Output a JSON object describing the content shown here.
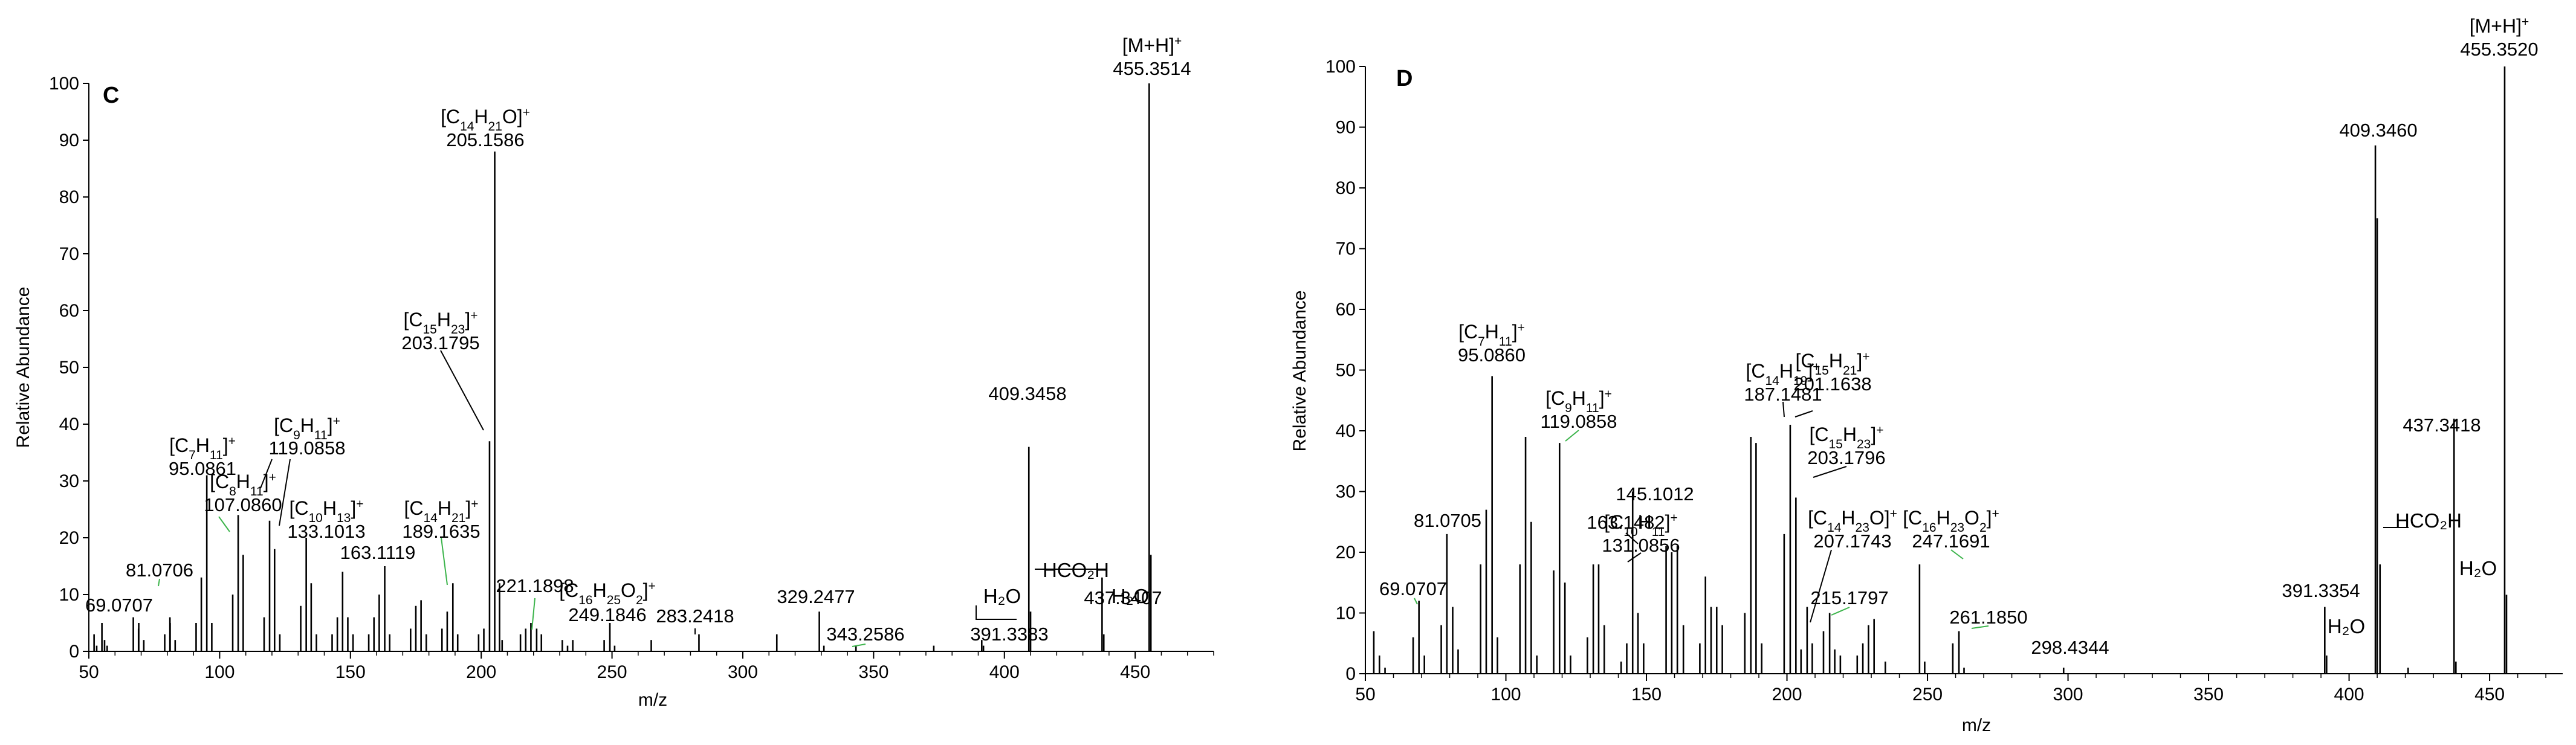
{
  "chart_data": [
    {
      "panel": "C",
      "type": "bar",
      "xlabel": "m/z",
      "ylabel": "Relative Abundance",
      "xlim": [
        50,
        480
      ],
      "ylim": [
        0,
        100
      ],
      "xticks": [
        50,
        100,
        150,
        200,
        250,
        300,
        350,
        400,
        450
      ],
      "yticks": [
        0,
        10,
        20,
        30,
        40,
        50,
        60,
        70,
        80,
        90,
        100
      ],
      "peaks": [
        [
          52,
          3
        ],
        [
          53,
          1
        ],
        [
          55,
          5
        ],
        [
          56,
          2
        ],
        [
          57,
          1
        ],
        [
          67,
          6
        ],
        [
          69,
          4
        ],
        [
          69.07,
          5
        ],
        [
          71,
          2
        ],
        [
          79,
          3
        ],
        [
          81,
          6
        ],
        [
          81.07,
          5
        ],
        [
          83,
          2
        ],
        [
          91,
          5
        ],
        [
          93,
          13
        ],
        [
          95.09,
          31
        ],
        [
          97,
          5
        ],
        [
          105,
          10
        ],
        [
          107.09,
          24
        ],
        [
          109,
          17
        ],
        [
          117,
          6
        ],
        [
          119.09,
          23
        ],
        [
          121,
          18
        ],
        [
          123,
          3
        ],
        [
          131,
          8
        ],
        [
          133.1,
          20
        ],
        [
          135,
          12
        ],
        [
          137,
          3
        ],
        [
          143,
          3
        ],
        [
          145,
          6
        ],
        [
          147,
          14
        ],
        [
          149,
          6
        ],
        [
          151,
          3
        ],
        [
          157,
          3
        ],
        [
          159,
          6
        ],
        [
          161,
          10
        ],
        [
          163.11,
          15
        ],
        [
          165,
          3
        ],
        [
          173,
          4
        ],
        [
          175,
          8
        ],
        [
          177,
          9
        ],
        [
          179,
          3
        ],
        [
          185,
          4
        ],
        [
          187,
          7
        ],
        [
          189.16,
          12
        ],
        [
          191,
          3
        ],
        [
          199,
          3
        ],
        [
          201,
          4
        ],
        [
          203.18,
          37
        ],
        [
          205.16,
          88
        ],
        [
          207,
          12
        ],
        [
          208,
          2
        ],
        [
          215,
          3
        ],
        [
          217,
          4
        ],
        [
          219,
          5
        ],
        [
          221.19,
          4
        ],
        [
          223,
          3
        ],
        [
          231,
          2
        ],
        [
          233,
          1
        ],
        [
          235,
          2
        ],
        [
          247,
          2
        ],
        [
          249.18,
          5
        ],
        [
          251,
          1
        ],
        [
          265,
          2
        ],
        [
          283.24,
          3
        ],
        [
          313,
          3
        ],
        [
          329.25,
          7
        ],
        [
          331,
          1
        ],
        [
          343.26,
          1
        ],
        [
          373,
          1
        ],
        [
          391.34,
          2
        ],
        [
          392,
          1
        ],
        [
          409.35,
          36
        ],
        [
          410,
          7
        ],
        [
          437.34,
          13
        ],
        [
          438,
          3
        ],
        [
          455.35,
          100
        ],
        [
          456,
          17
        ]
      ],
      "labels": [
        {
          "text": "69.0707",
          "mz": 69.07
        },
        {
          "text": "81.0706",
          "mz": 81.07
        },
        {
          "ion": [
            "[C",
            "7",
            "H",
            "11",
            "]",
            "+"
          ],
          "mass": "95.0861",
          "mz": 95.09
        },
        {
          "ion": [
            "[C",
            "8",
            "H",
            "11",
            "]",
            "+"
          ],
          "mass": "107.0860",
          "mz": 107.09
        },
        {
          "ion": [
            "[C",
            "9",
            "H",
            "11",
            "]",
            "+"
          ],
          "mass": "119.0858",
          "mz": 119.09
        },
        {
          "ion": [
            "[C",
            "10",
            "H",
            "13",
            "]",
            "+"
          ],
          "mass": "133.1013",
          "mz": 133.1
        },
        {
          "text": "163.1119",
          "mz": 163.11
        },
        {
          "ion": [
            "[C",
            "14",
            "H",
            "21",
            "]",
            "+"
          ],
          "mass": "189.1635",
          "mz": 189.16
        },
        {
          "ion": [
            "[C",
            "15",
            "H",
            "23",
            "]",
            "+"
          ],
          "mass": "203.1795",
          "mz": 203.18
        },
        {
          "ion": [
            "[C",
            "14",
            "H",
            "21",
            "O]",
            "+"
          ],
          "mass": "205.1586",
          "mz": 205.16
        },
        {
          "text": "221.1898",
          "mz": 221.19
        },
        {
          "ion": [
            "[C",
            "16",
            "H",
            "25",
            "O",
            "2",
            "]",
            "+"
          ],
          "mass": "249.1846",
          "mz": 249.18
        },
        {
          "text": "283.2418",
          "mz": 283.24
        },
        {
          "text": "329.2477",
          "mz": 329.25
        },
        {
          "text": "343.2586",
          "mz": 343.26
        },
        {
          "text": "391.3383",
          "mz": 391.34
        },
        {
          "text": "409.3458",
          "mz": 409.35
        },
        {
          "text": "437.3407",
          "mz": 437.34
        },
        {
          "ion": [
            "[M+H]",
            "+"
          ],
          "mass": "455.3514",
          "mz": 455.35
        }
      ],
      "losses": [
        "H₂O",
        "HCO₂H",
        "H₂O"
      ]
    },
    {
      "panel": "D",
      "type": "bar",
      "xlabel": "m/z",
      "ylabel": "Relative Abundance",
      "xlim": [
        50,
        476
      ],
      "ylim": [
        0,
        100
      ],
      "xticks": [
        50,
        100,
        150,
        200,
        250,
        300,
        350,
        400,
        450
      ],
      "yticks": [
        0,
        10,
        20,
        30,
        40,
        50,
        60,
        70,
        80,
        90,
        100
      ],
      "peaks": [
        [
          53,
          7
        ],
        [
          55,
          3
        ],
        [
          57,
          1
        ],
        [
          67,
          6
        ],
        [
          69.07,
          12
        ],
        [
          71,
          3
        ],
        [
          77,
          8
        ],
        [
          79,
          23
        ],
        [
          81.07,
          11
        ],
        [
          83,
          4
        ],
        [
          91,
          18
        ],
        [
          93,
          27
        ],
        [
          95.09,
          49
        ],
        [
          97,
          6
        ],
        [
          105,
          18
        ],
        [
          107,
          39
        ],
        [
          109,
          25
        ],
        [
          111,
          3
        ],
        [
          117,
          17
        ],
        [
          119.09,
          38
        ],
        [
          121,
          15
        ],
        [
          123,
          3
        ],
        [
          129,
          6
        ],
        [
          131.09,
          18
        ],
        [
          133,
          18
        ],
        [
          135,
          8
        ],
        [
          141,
          2
        ],
        [
          143,
          5
        ],
        [
          145.1,
          30
        ],
        [
          147,
          10
        ],
        [
          149,
          5
        ],
        [
          157,
          21
        ],
        [
          159,
          20
        ],
        [
          161,
          21
        ],
        [
          163.15,
          8
        ],
        [
          169,
          5
        ],
        [
          171,
          16
        ],
        [
          173,
          11
        ],
        [
          175,
          11
        ],
        [
          177,
          8
        ],
        [
          185,
          10
        ],
        [
          187.15,
          39
        ],
        [
          189,
          38
        ],
        [
          191,
          5
        ],
        [
          199,
          23
        ],
        [
          201.16,
          41
        ],
        [
          203.18,
          29
        ],
        [
          205,
          4
        ],
        [
          207.17,
          11
        ],
        [
          209,
          5
        ],
        [
          213,
          7
        ],
        [
          215.18,
          10
        ],
        [
          217,
          4
        ],
        [
          219,
          3
        ],
        [
          225,
          3
        ],
        [
          227,
          5
        ],
        [
          229,
          8
        ],
        [
          231,
          9
        ],
        [
          235,
          2
        ],
        [
          247.17,
          18
        ],
        [
          249,
          2
        ],
        [
          259,
          5
        ],
        [
          261.19,
          7
        ],
        [
          263,
          1
        ],
        [
          298.43,
          1
        ],
        [
          391.34,
          11
        ],
        [
          392,
          3
        ],
        [
          409.35,
          87
        ],
        [
          410,
          75
        ],
        [
          411,
          18
        ],
        [
          421,
          1
        ],
        [
          437.34,
          42
        ],
        [
          438,
          2
        ],
        [
          455.35,
          100
        ],
        [
          456,
          13
        ]
      ],
      "labels": [
        {
          "text": "69.0707",
          "mz": 69.07
        },
        {
          "text": "81.0705",
          "mz": 81.07
        },
        {
          "ion": [
            "[C",
            "7",
            "H",
            "11",
            "]",
            "+"
          ],
          "mass": "95.0860",
          "mz": 95.09
        },
        {
          "ion": [
            "[C",
            "9",
            "H",
            "11",
            "]",
            "+"
          ],
          "mass": "119.0858",
          "mz": 119.09
        },
        {
          "ion": [
            "[C",
            "10",
            "H",
            "11",
            "]",
            "+"
          ],
          "mass": "131.0856",
          "mz": 131.09
        },
        {
          "text": "145.1012",
          "mz": 145.1
        },
        {
          "text": "163.1482",
          "mz": 163.15
        },
        {
          "ion": [
            "[C",
            "14",
            "H",
            "19",
            "]",
            "+"
          ],
          "mass": "187.1481",
          "mz": 187.15
        },
        {
          "ion": [
            "[C",
            "15",
            "H",
            "21",
            "]",
            "+"
          ],
          "mass": "201.1638",
          "mz": 201.16
        },
        {
          "ion": [
            "[C",
            "15",
            "H",
            "23",
            "]",
            "+"
          ],
          "mass": "203.1796",
          "mz": 203.18
        },
        {
          "ion": [
            "[C",
            "14",
            "H",
            "23",
            "O]",
            "+"
          ],
          "mass": "207.1743",
          "mz": 207.17
        },
        {
          "text": "215.1797",
          "mz": 215.18
        },
        {
          "ion": [
            "[C",
            "16",
            "H",
            "23",
            "O",
            "2",
            "]",
            "+"
          ],
          "mass": "247.1691",
          "mz": 247.17
        },
        {
          "text": "261.1850",
          "mz": 261.19
        },
        {
          "text": "298.4344",
          "mz": 298.43
        },
        {
          "text": "391.3354",
          "mz": 391.34
        },
        {
          "text": "409.3460",
          "mz": 409.35
        },
        {
          "text": "437.3418",
          "mz": 437.34
        },
        {
          "ion": [
            "[M+H]",
            "+"
          ],
          "mass": "455.3520",
          "mz": 455.35
        }
      ],
      "losses": [
        "H₂O",
        "HCO₂H",
        "H₂O"
      ]
    }
  ]
}
